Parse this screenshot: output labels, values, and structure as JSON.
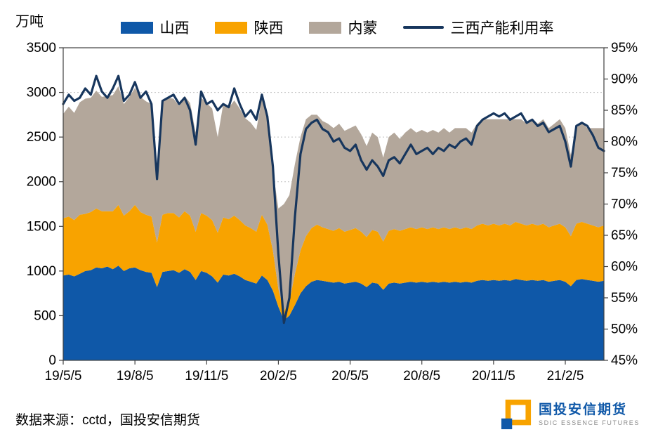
{
  "chart_data": {
    "type": "area",
    "title": "",
    "unit_label": "万吨",
    "legend_position": "top",
    "grid": true,
    "x_tick_labels": [
      "19/5/5",
      "19/8/5",
      "19/11/5",
      "20/2/5",
      "20/5/5",
      "20/8/5",
      "20/11/5",
      "21/2/5"
    ],
    "x_tick_indices": [
      0,
      13,
      26,
      39,
      52,
      65,
      78,
      91
    ],
    "left_axis": {
      "min": 0,
      "max": 3500,
      "step": 500
    },
    "right_axis": {
      "min": 45,
      "max": 95,
      "step": 5,
      "suffix": "%"
    },
    "series": [
      {
        "name": "山西",
        "type": "area-stacked",
        "axis": "left",
        "color": "#0F58A8",
        "values": [
          950,
          960,
          940,
          970,
          1000,
          1010,
          1040,
          1030,
          1050,
          1020,
          1060,
          1000,
          1030,
          1040,
          1010,
          990,
          980,
          820,
          990,
          1000,
          1010,
          980,
          1020,
          990,
          900,
          1000,
          980,
          940,
          870,
          960,
          950,
          970,
          940,
          900,
          880,
          860,
          950,
          900,
          780,
          600,
          450,
          500,
          620,
          750,
          830,
          880,
          900,
          890,
          880,
          870,
          880,
          860,
          870,
          880,
          860,
          820,
          870,
          860,
          790,
          860,
          870,
          860,
          870,
          880,
          870,
          880,
          870,
          880,
          870,
          880,
          870,
          880,
          870,
          880,
          870,
          890,
          900,
          890,
          900,
          890,
          900,
          890,
          910,
          900,
          890,
          900,
          890,
          900,
          880,
          890,
          900,
          880,
          830,
          900,
          910,
          900,
          890,
          880,
          890
        ]
      },
      {
        "name": "陕西",
        "type": "area-stacked",
        "axis": "left",
        "color": "#F8A300",
        "values": [
          640,
          650,
          630,
          660,
          640,
          650,
          660,
          640,
          620,
          650,
          680,
          620,
          640,
          700,
          650,
          640,
          630,
          500,
          640,
          650,
          640,
          620,
          650,
          630,
          540,
          650,
          640,
          630,
          560,
          640,
          630,
          650,
          630,
          610,
          600,
          580,
          680,
          620,
          450,
          200,
          100,
          160,
          350,
          480,
          560,
          600,
          620,
          600,
          590,
          580,
          600,
          580,
          590,
          600,
          580,
          560,
          590,
          580,
          540,
          590,
          600,
          590,
          600,
          610,
          600,
          610,
          600,
          610,
          600,
          610,
          600,
          610,
          600,
          610,
          600,
          620,
          630,
          620,
          630,
          620,
          630,
          620,
          640,
          630,
          620,
          630,
          620,
          630,
          610,
          620,
          630,
          610,
          560,
          630,
          640,
          630,
          620,
          610,
          620
        ]
      },
      {
        "name": "内蒙",
        "type": "area-stacked",
        "axis": "left",
        "color": "#B3A79B",
        "values": [
          1170,
          1230,
          1200,
          1260,
          1290,
          1280,
          1320,
          1280,
          1290,
          1300,
          1330,
          1250,
          1280,
          1310,
          1290,
          1270,
          1260,
          730,
          1270,
          1290,
          1280,
          1250,
          1290,
          1260,
          1110,
          1290,
          1260,
          1250,
          1070,
          1270,
          1250,
          1290,
          1250,
          1200,
          1180,
          1140,
          1300,
          1230,
          900,
          900,
          1200,
          1190,
          1230,
          1270,
          1310,
          1270,
          1230,
          1190,
          1180,
          1150,
          1170,
          1130,
          1140,
          1150,
          1090,
          1020,
          1090,
          1060,
          940,
          1050,
          1080,
          1030,
          1080,
          1110,
          1080,
          1090,
          1080,
          1090,
          1080,
          1110,
          1080,
          1110,
          1130,
          1110,
          1080,
          1140,
          1170,
          1190,
          1170,
          1190,
          1170,
          1190,
          1150,
          1170,
          1140,
          1170,
          1140,
          1170,
          1110,
          1140,
          1170,
          1110,
          910,
          1070,
          1110,
          1070,
          1090,
          1110,
          1090
        ]
      },
      {
        "name": "三西产能利用率",
        "type": "line",
        "axis": "right",
        "color": "#17365D",
        "values": [
          86,
          87.5,
          86.5,
          87,
          88.5,
          87.5,
          90.5,
          88,
          87,
          88.5,
          90.5,
          86.5,
          87.5,
          89.5,
          87,
          88,
          86,
          74,
          86.5,
          87,
          87.5,
          86,
          87,
          85,
          79.5,
          88,
          86,
          86.5,
          85,
          86,
          85.5,
          88.5,
          86,
          84,
          85,
          83.5,
          87.5,
          84,
          76,
          62,
          51,
          55,
          68,
          78,
          82,
          83,
          83.5,
          82,
          81.5,
          80,
          80.5,
          79,
          78.5,
          79.5,
          77,
          75.5,
          77,
          76,
          74.5,
          77,
          77.5,
          76.5,
          78,
          79.5,
          78,
          78.5,
          79,
          78,
          79,
          78.5,
          79.5,
          79,
          80,
          80.5,
          79.5,
          82.5,
          83.5,
          84,
          84.5,
          84,
          84.5,
          83.5,
          84,
          84.5,
          83,
          83.5,
          82.5,
          83,
          81.5,
          82,
          82.5,
          80,
          76,
          82.5,
          83,
          82.5,
          81,
          79,
          78.5
        ]
      }
    ]
  },
  "footer": {
    "source_text": "数据来源：cctd，国投安信期货"
  },
  "logo": {
    "title": "国投安信期货",
    "subtitle": "SDIC ESSENCE FUTURES"
  },
  "colors": {
    "grid": "#C0C0C0",
    "frame": "#404040",
    "logo_orange": "#F8A300",
    "logo_blue": "#0F58A8"
  }
}
